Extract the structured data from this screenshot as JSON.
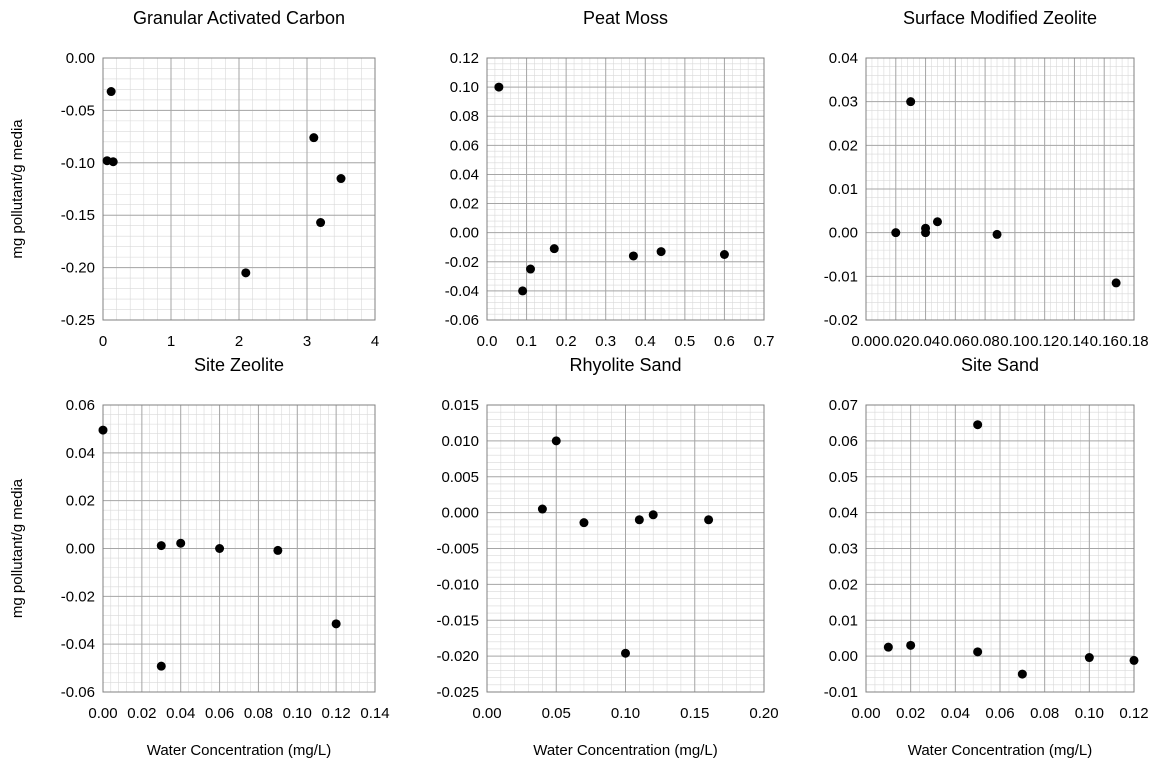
{
  "figure": {
    "ylabel": "mg pollutant/g media",
    "xlabel": "Water Concentration (mg/L)"
  },
  "chart_data": [
    {
      "type": "scatter",
      "title": "Granular Activated Carbon",
      "xlabel": "",
      "ylabel": "mg pollutant/g media",
      "xlim": [
        0,
        4
      ],
      "ylim": [
        -0.25,
        0
      ],
      "x_ticks": [
        "0",
        "1",
        "2",
        "3",
        "4"
      ],
      "y_ticks": [
        "0.00",
        "-0.05",
        "-0.10",
        "-0.15",
        "-0.20",
        "-0.25"
      ],
      "grid": true,
      "points": [
        {
          "x": 0.12,
          "y": -0.032
        },
        {
          "x": 0.06,
          "y": -0.098
        },
        {
          "x": 0.15,
          "y": -0.099
        },
        {
          "x": 2.1,
          "y": -0.205
        },
        {
          "x": 3.1,
          "y": -0.076
        },
        {
          "x": 3.2,
          "y": -0.157
        },
        {
          "x": 3.5,
          "y": -0.115
        }
      ]
    },
    {
      "type": "scatter",
      "title": "Peat Moss",
      "xlabel": "",
      "ylabel": "",
      "xlim": [
        0,
        0.7
      ],
      "ylim": [
        -0.06,
        0.12
      ],
      "x_ticks": [
        "0.0",
        "0.1",
        "0.2",
        "0.3",
        "0.4",
        "0.5",
        "0.6",
        "0.7"
      ],
      "y_ticks": [
        "0.12",
        "0.10",
        "0.08",
        "0.06",
        "0.04",
        "0.02",
        "0.00",
        "-0.02",
        "-0.04",
        "-0.06"
      ],
      "grid": true,
      "points": [
        {
          "x": 0.03,
          "y": 0.1
        },
        {
          "x": 0.09,
          "y": -0.04
        },
        {
          "x": 0.11,
          "y": -0.025
        },
        {
          "x": 0.17,
          "y": -0.011
        },
        {
          "x": 0.37,
          "y": -0.016
        },
        {
          "x": 0.44,
          "y": -0.013
        },
        {
          "x": 0.6,
          "y": -0.015
        }
      ]
    },
    {
      "type": "scatter",
      "title": "Surface Modified Zeolite",
      "xlabel": "",
      "ylabel": "",
      "xlim": [
        0,
        0.18
      ],
      "ylim": [
        -0.02,
        0.04
      ],
      "x_ticks": [
        "0.00",
        "0.02",
        "0.04",
        "0.06",
        "0.08",
        "0.10",
        "0.12",
        "0.14",
        "0.16",
        "0.18"
      ],
      "y_ticks": [
        "0.04",
        "0.03",
        "0.02",
        "0.01",
        "0.00",
        "-0.01",
        "-0.02"
      ],
      "grid": true,
      "points": [
        {
          "x": 0.02,
          "y": 0.0
        },
        {
          "x": 0.03,
          "y": 0.03
        },
        {
          "x": 0.04,
          "y": 0.001
        },
        {
          "x": 0.04,
          "y": 0.0
        },
        {
          "x": 0.048,
          "y": 0.0025
        },
        {
          "x": 0.088,
          "y": -0.0004
        },
        {
          "x": 0.168,
          "y": -0.0115
        }
      ]
    },
    {
      "type": "scatter",
      "title": "Site Zeolite",
      "xlabel": "Water Concentration (mg/L)",
      "ylabel": "mg pollutant/g media",
      "xlim": [
        0,
        0.14
      ],
      "ylim": [
        -0.06,
        0.06
      ],
      "x_ticks": [
        "0.00",
        "0.02",
        "0.04",
        "0.06",
        "0.08",
        "0.10",
        "0.12",
        "0.14"
      ],
      "y_ticks": [
        "0.06",
        "0.04",
        "0.02",
        "0.00",
        "-0.02",
        "-0.04",
        "-0.06"
      ],
      "grid": true,
      "points": [
        {
          "x": 0.0,
          "y": 0.0495
        },
        {
          "x": 0.03,
          "y": 0.0012
        },
        {
          "x": 0.03,
          "y": -0.0492
        },
        {
          "x": 0.04,
          "y": 0.0022
        },
        {
          "x": 0.06,
          "y": 0.0
        },
        {
          "x": 0.09,
          "y": -0.0008
        },
        {
          "x": 0.12,
          "y": -0.0315
        }
      ]
    },
    {
      "type": "scatter",
      "title": "Rhyolite Sand",
      "xlabel": "Water Concentration (mg/L)",
      "ylabel": "",
      "xlim": [
        0,
        0.2
      ],
      "ylim": [
        -0.025,
        0.015
      ],
      "x_ticks": [
        "0.00",
        "0.05",
        "0.10",
        "0.15",
        "0.20"
      ],
      "y_ticks": [
        "0.015",
        "0.010",
        "0.005",
        "0.000",
        "-0.005",
        "-0.010",
        "-0.015",
        "-0.020",
        "-0.025"
      ],
      "grid": true,
      "points": [
        {
          "x": 0.04,
          "y": 0.0005
        },
        {
          "x": 0.05,
          "y": 0.01
        },
        {
          "x": 0.07,
          "y": -0.0014
        },
        {
          "x": 0.1,
          "y": -0.0196
        },
        {
          "x": 0.11,
          "y": -0.001
        },
        {
          "x": 0.12,
          "y": -0.0003
        },
        {
          "x": 0.16,
          "y": -0.001
        }
      ]
    },
    {
      "type": "scatter",
      "title": "Site Sand",
      "xlabel": "Water Concentration (mg/L)",
      "ylabel": "",
      "xlim": [
        0,
        0.12
      ],
      "ylim": [
        -0.01,
        0.07
      ],
      "x_ticks": [
        "0.00",
        "0.02",
        "0.04",
        "0.06",
        "0.08",
        "0.10",
        "0.12"
      ],
      "y_ticks": [
        "0.07",
        "0.06",
        "0.05",
        "0.04",
        "0.03",
        "0.02",
        "0.01",
        "0.00",
        "-0.01"
      ],
      "grid": true,
      "points": [
        {
          "x": 0.01,
          "y": 0.0025
        },
        {
          "x": 0.02,
          "y": 0.003
        },
        {
          "x": 0.05,
          "y": 0.0645
        },
        {
          "x": 0.05,
          "y": 0.0012
        },
        {
          "x": 0.07,
          "y": -0.005
        },
        {
          "x": 0.1,
          "y": -0.0004
        },
        {
          "x": 0.12,
          "y": -0.0012
        }
      ]
    }
  ]
}
